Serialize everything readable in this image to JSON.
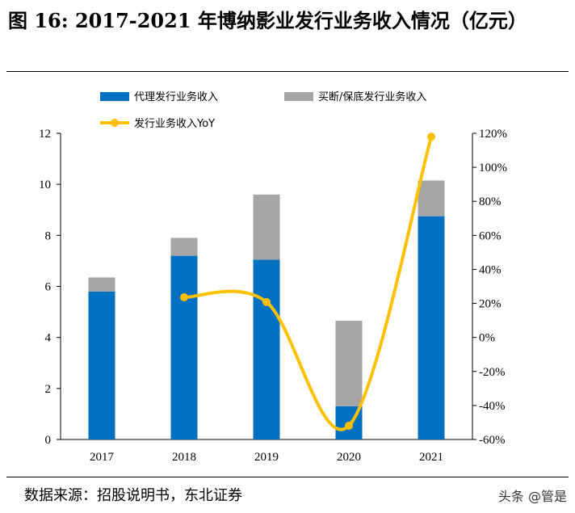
{
  "title": "图 16: 2017-2021 年博纳影业发行业务收入情况（亿元）",
  "source": "数据来源：招股说明书，东北证券",
  "watermark": "头条 @管是",
  "chart_data": {
    "type": "bar",
    "stacked": true,
    "categories": [
      "2017",
      "2018",
      "2019",
      "2020",
      "2021"
    ],
    "series": [
      {
        "name": "代理发行业务收入",
        "axis": "left",
        "type": "bar",
        "color": "#0070C0",
        "values": [
          5.8,
          7.2,
          7.05,
          1.3,
          8.75
        ]
      },
      {
        "name": "买断/保底发行业务收入",
        "axis": "left",
        "type": "bar",
        "color": "#A5A5A5",
        "values": [
          0.55,
          0.7,
          2.55,
          3.35,
          1.4
        ]
      },
      {
        "name": "发行业务收入YoY",
        "axis": "right",
        "type": "line",
        "color": "#FFC000",
        "values": [
          null,
          23.6,
          20.8,
          -51.9,
          118
        ]
      }
    ],
    "ylim": [
      0,
      12
    ],
    "yticks": [
      "0",
      "2",
      "4",
      "6",
      "8",
      "10",
      "12"
    ],
    "y2lim": [
      -60,
      120
    ],
    "y2ticks": [
      "-60%",
      "-40%",
      "-20%",
      "0%",
      "20%",
      "40%",
      "60%",
      "80%",
      "100%",
      "120%"
    ],
    "legend": "top",
    "grid": false
  }
}
